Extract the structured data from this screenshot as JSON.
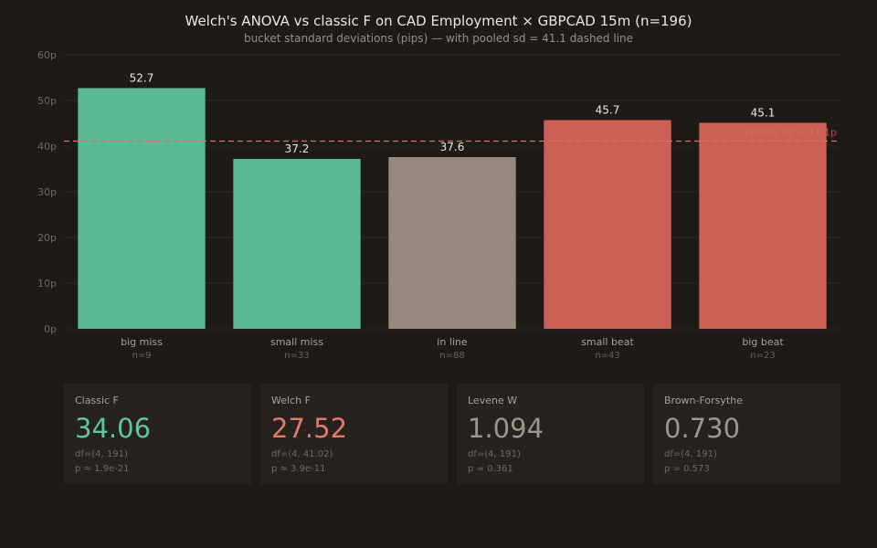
{
  "chart_data": {
    "type": "bar",
    "title": "Welch's ANOVA vs classic F on CAD Employment × GBPCAD 15m (n=196)",
    "subtitle": "bucket standard deviations (pips) — with pooled sd = 41.1 dashed line",
    "categories": [
      "big miss",
      "small miss",
      "in line",
      "small beat",
      "big beat"
    ],
    "counts": [
      "n=9",
      "n=33",
      "n=88",
      "n=43",
      "n=23"
    ],
    "values": [
      52.7,
      37.2,
      37.6,
      45.7,
      45.1
    ],
    "colors": [
      "#5ab893",
      "#5ab893",
      "#958a7d",
      "#cc6055",
      "#cc6055"
    ],
    "ylim": [
      0,
      60
    ],
    "yticks": [
      "0p",
      "10p",
      "20p",
      "30p",
      "40p",
      "50p",
      "60p"
    ],
    "grid": true,
    "pooled_sd": 41.1,
    "pooled_label": "pooled sd = 41.1p"
  },
  "stats": [
    {
      "label": "Classic F",
      "value": "34.06",
      "df": "df=(4, 191)",
      "p": "p ≈ 1.9e-21",
      "color": "#5ec69e"
    },
    {
      "label": "Welch F",
      "value": "27.52",
      "df": "df=(4, 41.02)",
      "p": "p ≈ 3.9e-11",
      "color": "#e0796a"
    },
    {
      "label": "Levene W",
      "value": "1.094",
      "df": "df=(4, 191)",
      "p": "p = 0.361",
      "color": "#9e958d"
    },
    {
      "label": "Brown-Forsythe",
      "value": "0.730",
      "df": "df=(4, 191)",
      "p": "p = 0.573",
      "color": "#9e958d"
    }
  ]
}
